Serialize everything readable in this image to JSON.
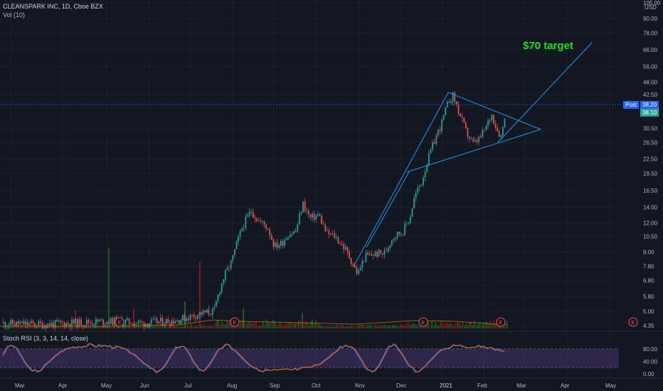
{
  "header": {
    "symbol_line": "CLEANSPARK INC, 1D, Cboe BZX",
    "volume_line": "Vol (10)"
  },
  "indicator": {
    "label": "Stoch RSI (3, 3, 14, 14, close)"
  },
  "annotation": {
    "text": "$70 target",
    "color": "#22dd22"
  },
  "price_axis": {
    "unit": "USD",
    "ticks": [
      "105.00",
      "90.00",
      "78.00",
      "66.00",
      "56.00",
      "48.00",
      "42.50",
      "38.20",
      "38.10",
      "30.50",
      "26.50",
      "22.50",
      "19.50",
      "16.50",
      "14.00",
      "12.00",
      "10.50",
      "9.00",
      "7.80",
      "6.80",
      "5.80",
      "5.00",
      "4.35"
    ],
    "post_label": "Post",
    "post_value": "38.20",
    "last_value": "38.10"
  },
  "rsi_axis": {
    "ticks": [
      "80.00",
      "40.00",
      "0.00"
    ],
    "upper_band": 80,
    "lower_band": 20
  },
  "time_axis": {
    "labels": [
      "Mar",
      "Apr",
      "May",
      "Jun",
      "Jul",
      "Aug",
      "Sep",
      "Oct",
      "Nov",
      "Dec",
      "2021",
      "Feb",
      "Mar",
      "Apr",
      "May"
    ]
  },
  "earnings_marker": "E",
  "colors": {
    "up": "#26a69a",
    "down": "#ef5350",
    "line": "#2196f3",
    "rsi_k": "#2962ff",
    "rsi_d": "#ff6d00",
    "rsi_band": "#7e57c2"
  },
  "chart_data": {
    "type": "candlestick",
    "y_scale": "log",
    "ylim": [
      4.35,
      105
    ],
    "key_points": [
      {
        "date": "2020-03",
        "close": 4.35
      },
      {
        "date": "2020-06",
        "close": 4.5
      },
      {
        "date": "2020-07",
        "close": 5.0
      },
      {
        "date": "2020-08",
        "close": 14.0
      },
      {
        "date": "2020-09",
        "close": 9.0
      },
      {
        "date": "2020-10",
        "close": 14.5
      },
      {
        "date": "2020-11",
        "close": 7.2
      },
      {
        "date": "2020-12",
        "close": 12.0
      },
      {
        "date": "2021-01",
        "close": 43.0
      },
      {
        "date": "2021-02",
        "close": 26.0
      },
      {
        "date": "2021-02-18",
        "close": 38.1
      }
    ],
    "last_price": 38.1,
    "post_price": 38.2,
    "target_price": 70,
    "oscillator": {
      "name": "Stoch RSI (3, 3, 14, 14, close)",
      "ylim": [
        0,
        100
      ],
      "levels": [
        20,
        80
      ]
    }
  }
}
